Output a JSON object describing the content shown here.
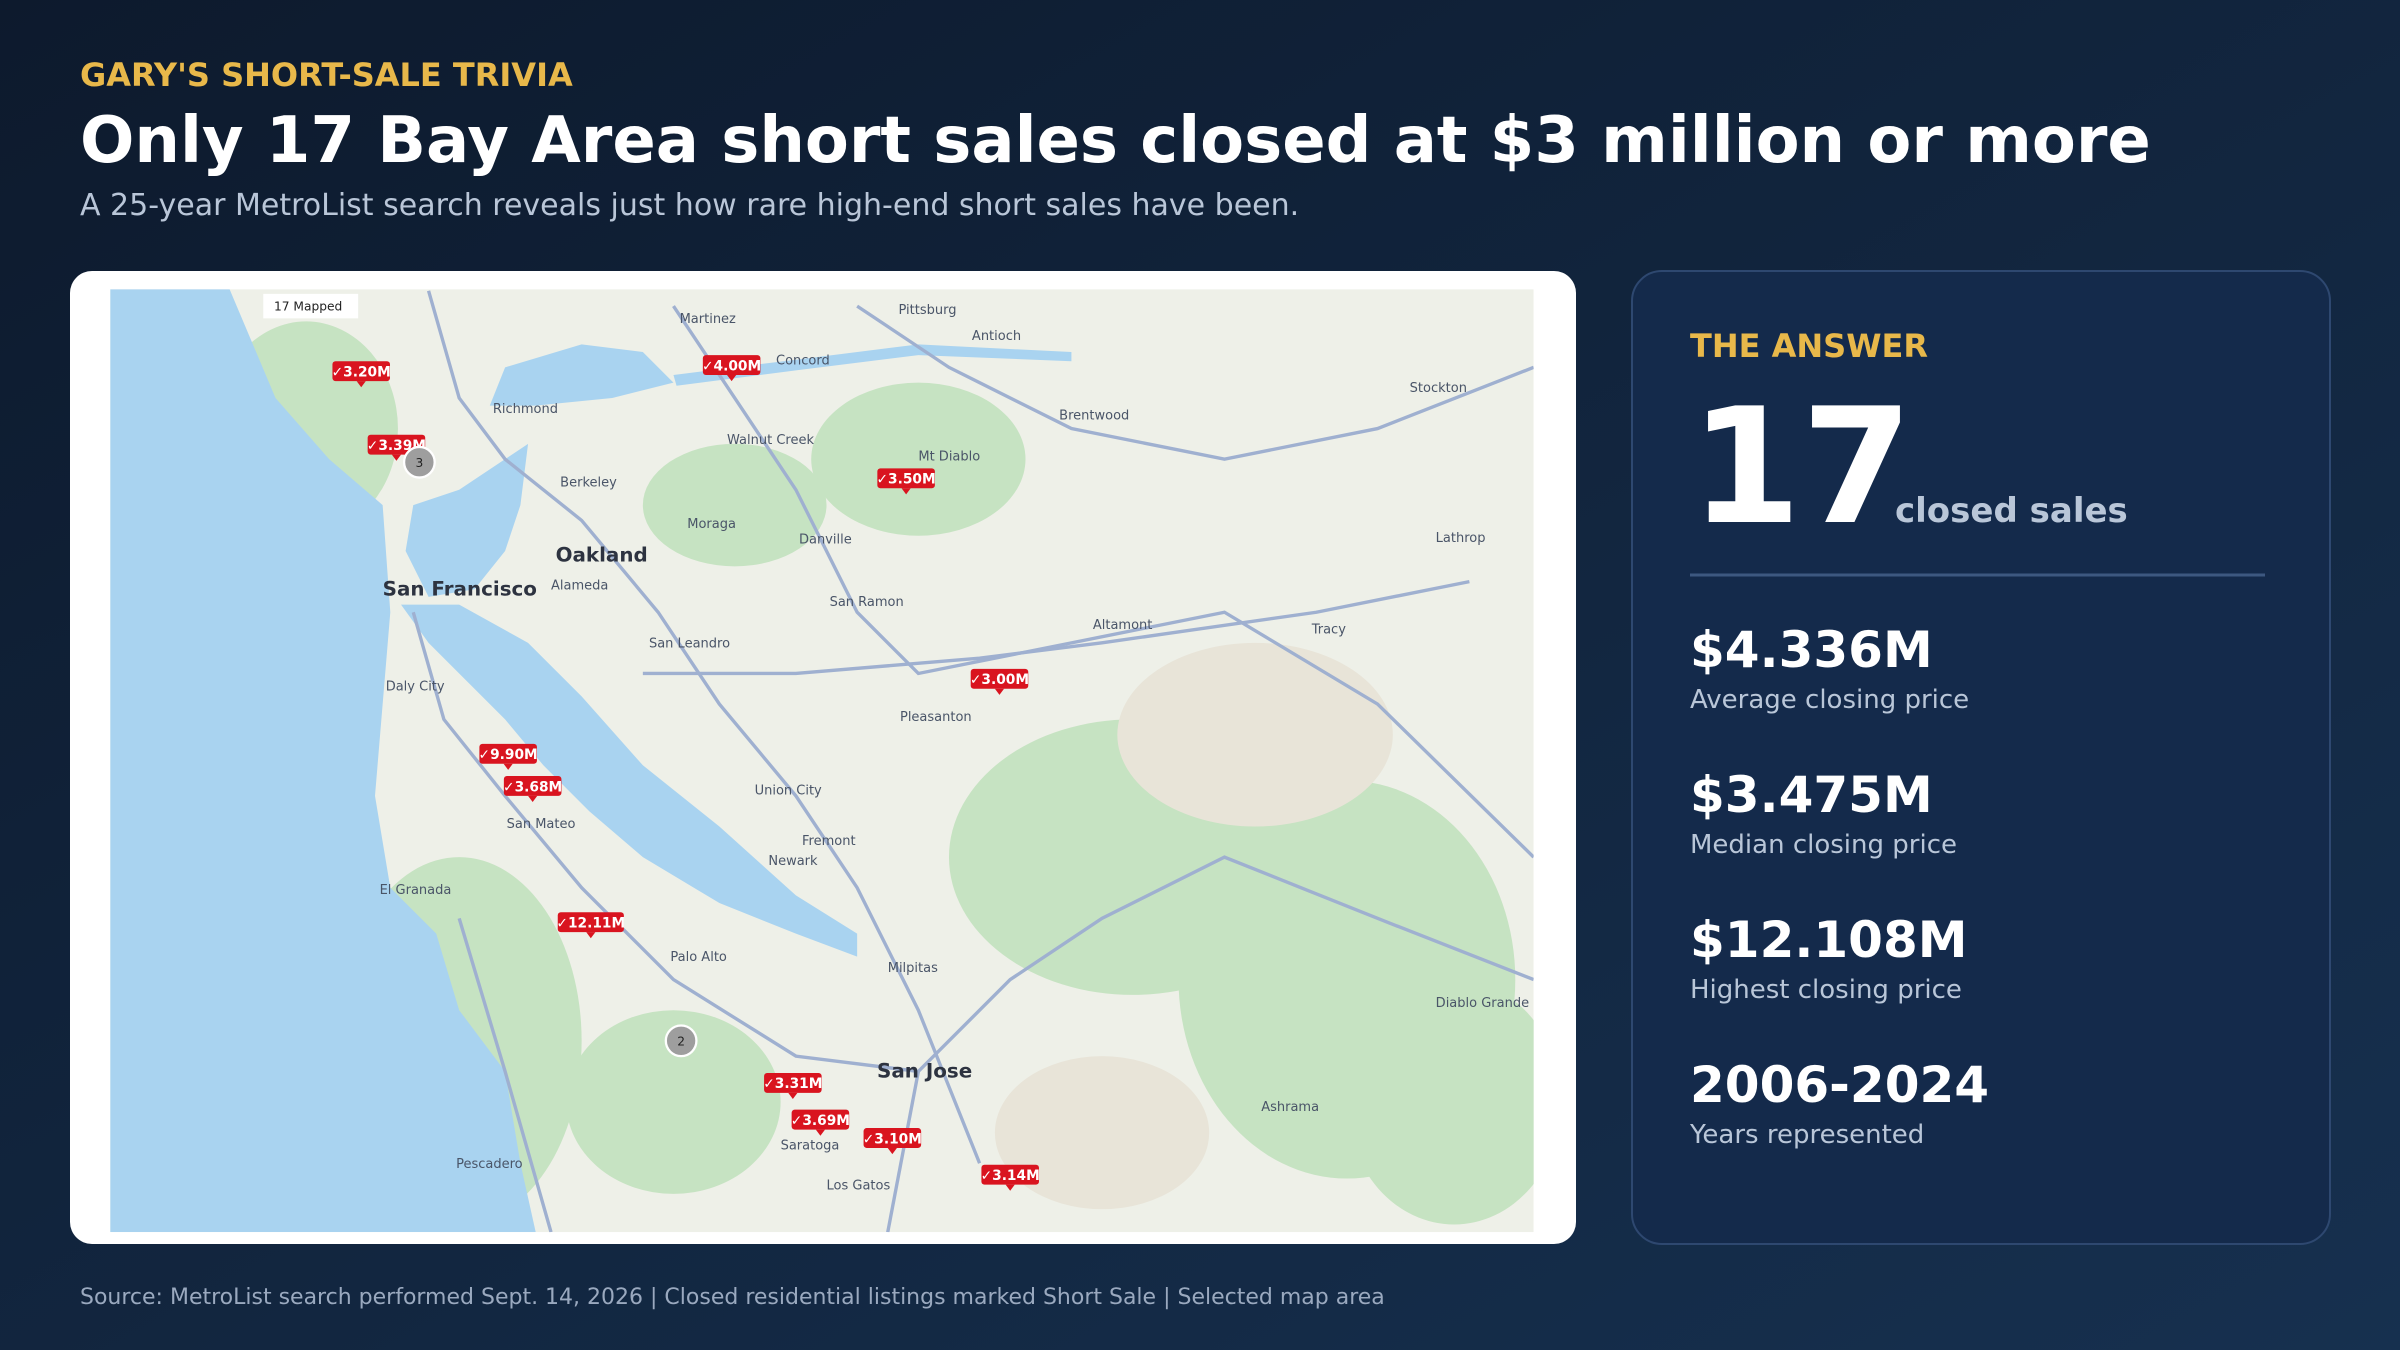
{
  "header": {
    "kicker": "GARY'S SHORT-SALE TRIVIA",
    "title": "Only 17 Bay Area short sales closed at $3 million or more",
    "subtitle": "A 25-year MetroList search reveals just how rare high-end short sales have been."
  },
  "map": {
    "overlay_label": "17 Mapped",
    "markers": [
      "✓3.20M",
      "✓3.39M",
      "✓4.00M",
      "✓3.50M",
      "✓3.00M",
      "✓9.90M",
      "✓3.68M",
      "✓12.11M",
      "✓3.31M",
      "✓3.69M",
      "✓3.10M",
      "✓3.14M"
    ],
    "clusters": [
      "3",
      "2"
    ],
    "places": [
      "San Francisco",
      "Oakland",
      "San Jose",
      "Fremont",
      "Berkeley",
      "Stockton",
      "Walnut Creek",
      "Concord",
      "Pleasanton",
      "Daly City",
      "San Mateo",
      "Palo Alto",
      "Milpitas",
      "Los Gatos",
      "Saratoga",
      "Tracy",
      "Danville",
      "San Ramon",
      "Richmond",
      "Mt Diablo",
      "Antioch",
      "Pittsburg",
      "Altamont",
      "San Leandro",
      "Union City",
      "Newark",
      "Pescadero",
      "El Granada",
      "Alameda",
      "Moraga",
      "Brentwood",
      "Martinez",
      "Diablo Grande",
      "Ashrama",
      "Lathrop"
    ]
  },
  "panel": {
    "heading": "THE ANSWER",
    "count": "17",
    "count_label": "closed sales",
    "stats": [
      {
        "value": "$4.336M",
        "label": "Average closing price"
      },
      {
        "value": "$3.475M",
        "label": "Median closing price"
      },
      {
        "value": "$12.108M",
        "label": "Highest closing price"
      },
      {
        "value": "2006-2024",
        "label": "Years represented"
      }
    ]
  },
  "footer": {
    "source": "Source: MetroList search performed Sept. 14, 2026 | Closed residential listings marked Short Sale | Selected map area"
  }
}
